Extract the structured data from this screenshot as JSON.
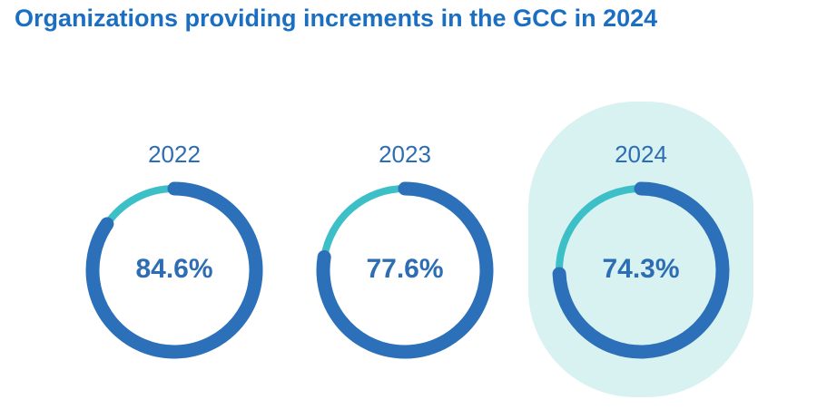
{
  "chart_data": {
    "type": "donut",
    "title": "Organizations providing increments in the GCC in 2024",
    "categories": [
      "2022",
      "2023",
      "2024"
    ],
    "values": [
      84.6,
      77.6,
      74.3
    ],
    "value_labels": [
      "84.6%",
      "77.6%",
      "74.3%"
    ],
    "color": "#2b70b9",
    "remainder_color": "#3dbfc7",
    "highlight": {
      "index": 2,
      "color": "#d8f1f1"
    }
  }
}
